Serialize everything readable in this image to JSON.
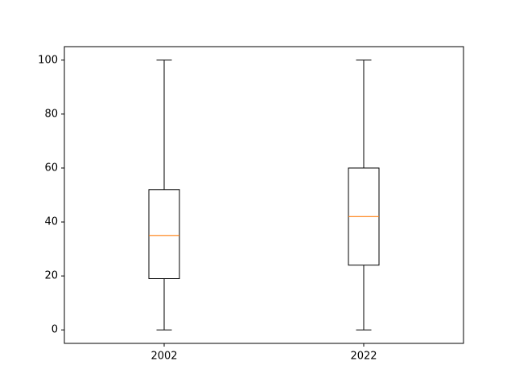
{
  "chart_data": {
    "type": "boxplot",
    "title": "",
    "xlabel": "",
    "ylabel": "",
    "categories": [
      "2002",
      "2022"
    ],
    "boxes": [
      {
        "category": "2002",
        "min": 0,
        "q1": 19,
        "median": 35,
        "q3": 52,
        "max": 100
      },
      {
        "category": "2022",
        "min": 0,
        "q1": 24,
        "median": 42,
        "q3": 60,
        "max": 100
      }
    ],
    "ylim": [
      -5,
      105
    ],
    "yticks": [
      0,
      20,
      40,
      60,
      80,
      100
    ],
    "grid": false,
    "colors": {
      "box": "#000000",
      "median": "#ff7f0e",
      "axes": "#000000"
    }
  }
}
